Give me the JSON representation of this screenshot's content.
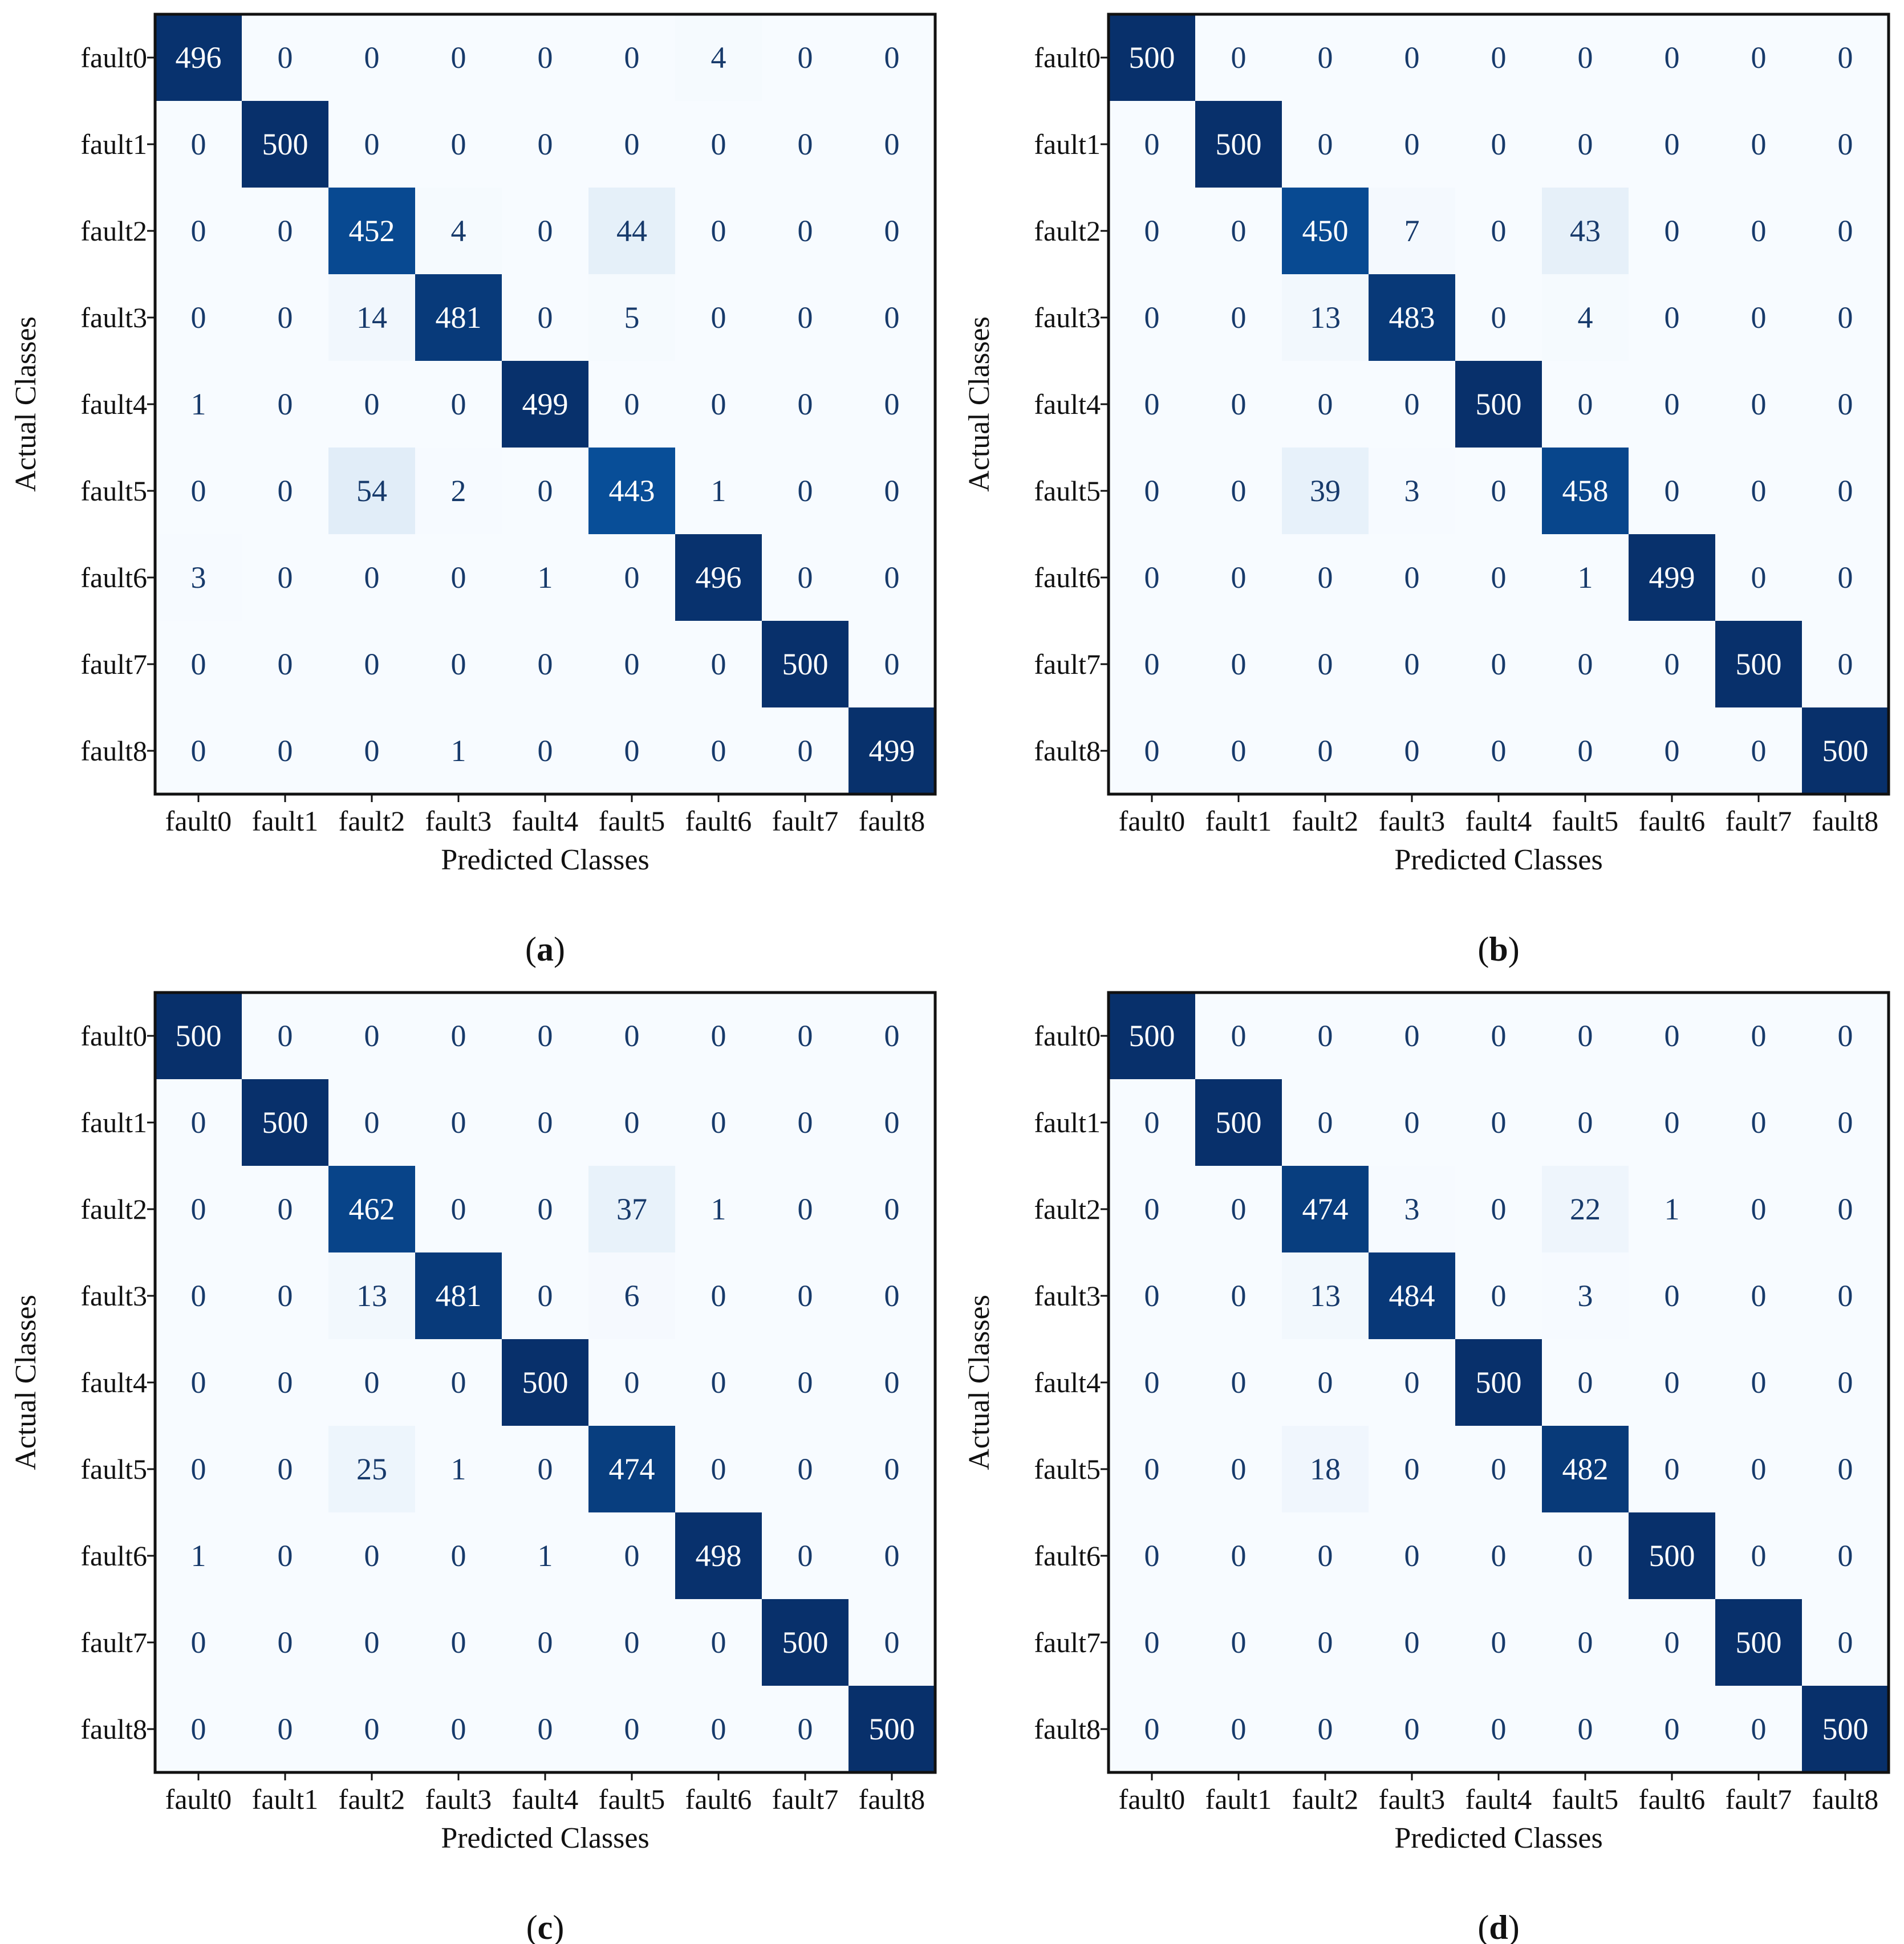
{
  "chart_data": [
    {
      "type": "heatmap",
      "title": "",
      "caption": "(a)",
      "caption_letter": "a",
      "xlabel": "Predicted Classes",
      "ylabel": "Actual Classes",
      "x_categories": [
        "fault0",
        "fault1",
        "fault2",
        "fault3",
        "fault4",
        "fault5",
        "fault6",
        "fault7",
        "fault8"
      ],
      "y_categories": [
        "fault0",
        "fault1",
        "fault2",
        "fault3",
        "fault4",
        "fault5",
        "fault6",
        "fault7",
        "fault8"
      ],
      "color_range": [
        0,
        500
      ],
      "colormap": "Blues",
      "values": [
        [
          496,
          0,
          0,
          0,
          0,
          0,
          4,
          0,
          0
        ],
        [
          0,
          500,
          0,
          0,
          0,
          0,
          0,
          0,
          0
        ],
        [
          0,
          0,
          452,
          4,
          0,
          44,
          0,
          0,
          0
        ],
        [
          0,
          0,
          14,
          481,
          0,
          5,
          0,
          0,
          0
        ],
        [
          1,
          0,
          0,
          0,
          499,
          0,
          0,
          0,
          0
        ],
        [
          0,
          0,
          54,
          2,
          0,
          443,
          1,
          0,
          0
        ],
        [
          3,
          0,
          0,
          0,
          1,
          0,
          496,
          0,
          0
        ],
        [
          0,
          0,
          0,
          0,
          0,
          0,
          0,
          500,
          0
        ],
        [
          0,
          0,
          0,
          1,
          0,
          0,
          0,
          0,
          499
        ]
      ]
    },
    {
      "type": "heatmap",
      "title": "",
      "caption": "(b)",
      "caption_letter": "b",
      "xlabel": "Predicted Classes",
      "ylabel": "Actual Classes",
      "x_categories": [
        "fault0",
        "fault1",
        "fault2",
        "fault3",
        "fault4",
        "fault5",
        "fault6",
        "fault7",
        "fault8"
      ],
      "y_categories": [
        "fault0",
        "fault1",
        "fault2",
        "fault3",
        "fault4",
        "fault5",
        "fault6",
        "fault7",
        "fault8"
      ],
      "color_range": [
        0,
        500
      ],
      "colormap": "Blues",
      "values": [
        [
          500,
          0,
          0,
          0,
          0,
          0,
          0,
          0,
          0
        ],
        [
          0,
          500,
          0,
          0,
          0,
          0,
          0,
          0,
          0
        ],
        [
          0,
          0,
          450,
          7,
          0,
          43,
          0,
          0,
          0
        ],
        [
          0,
          0,
          13,
          483,
          0,
          4,
          0,
          0,
          0
        ],
        [
          0,
          0,
          0,
          0,
          500,
          0,
          0,
          0,
          0
        ],
        [
          0,
          0,
          39,
          3,
          0,
          458,
          0,
          0,
          0
        ],
        [
          0,
          0,
          0,
          0,
          0,
          1,
          499,
          0,
          0
        ],
        [
          0,
          0,
          0,
          0,
          0,
          0,
          0,
          500,
          0
        ],
        [
          0,
          0,
          0,
          0,
          0,
          0,
          0,
          0,
          500
        ]
      ]
    },
    {
      "type": "heatmap",
      "title": "",
      "caption": "(c)",
      "caption_letter": "c",
      "xlabel": "Predicted Classes",
      "ylabel": "Actual Classes",
      "x_categories": [
        "fault0",
        "fault1",
        "fault2",
        "fault3",
        "fault4",
        "fault5",
        "fault6",
        "fault7",
        "fault8"
      ],
      "y_categories": [
        "fault0",
        "fault1",
        "fault2",
        "fault3",
        "fault4",
        "fault5",
        "fault6",
        "fault7",
        "fault8"
      ],
      "color_range": [
        0,
        500
      ],
      "colormap": "Blues",
      "values": [
        [
          500,
          0,
          0,
          0,
          0,
          0,
          0,
          0,
          0
        ],
        [
          0,
          500,
          0,
          0,
          0,
          0,
          0,
          0,
          0
        ],
        [
          0,
          0,
          462,
          0,
          0,
          37,
          1,
          0,
          0
        ],
        [
          0,
          0,
          13,
          481,
          0,
          6,
          0,
          0,
          0
        ],
        [
          0,
          0,
          0,
          0,
          500,
          0,
          0,
          0,
          0
        ],
        [
          0,
          0,
          25,
          1,
          0,
          474,
          0,
          0,
          0
        ],
        [
          1,
          0,
          0,
          0,
          1,
          0,
          498,
          0,
          0
        ],
        [
          0,
          0,
          0,
          0,
          0,
          0,
          0,
          500,
          0
        ],
        [
          0,
          0,
          0,
          0,
          0,
          0,
          0,
          0,
          500
        ]
      ]
    },
    {
      "type": "heatmap",
      "title": "",
      "caption": "(d)",
      "caption_letter": "d",
      "xlabel": "Predicted Classes",
      "ylabel": "Actual Classes",
      "x_categories": [
        "fault0",
        "fault1",
        "fault2",
        "fault3",
        "fault4",
        "fault5",
        "fault6",
        "fault7",
        "fault8"
      ],
      "y_categories": [
        "fault0",
        "fault1",
        "fault2",
        "fault3",
        "fault4",
        "fault5",
        "fault6",
        "fault7",
        "fault8"
      ],
      "color_range": [
        0,
        500
      ],
      "colormap": "Blues",
      "values": [
        [
          500,
          0,
          0,
          0,
          0,
          0,
          0,
          0,
          0
        ],
        [
          0,
          500,
          0,
          0,
          0,
          0,
          0,
          0,
          0
        ],
        [
          0,
          0,
          474,
          3,
          0,
          22,
          1,
          0,
          0
        ],
        [
          0,
          0,
          13,
          484,
          0,
          3,
          0,
          0,
          0
        ],
        [
          0,
          0,
          0,
          0,
          500,
          0,
          0,
          0,
          0
        ],
        [
          0,
          0,
          18,
          0,
          0,
          482,
          0,
          0,
          0
        ],
        [
          0,
          0,
          0,
          0,
          0,
          0,
          500,
          0,
          0
        ],
        [
          0,
          0,
          0,
          0,
          0,
          0,
          0,
          500,
          0
        ],
        [
          0,
          0,
          0,
          0,
          0,
          0,
          0,
          0,
          500
        ]
      ]
    }
  ]
}
